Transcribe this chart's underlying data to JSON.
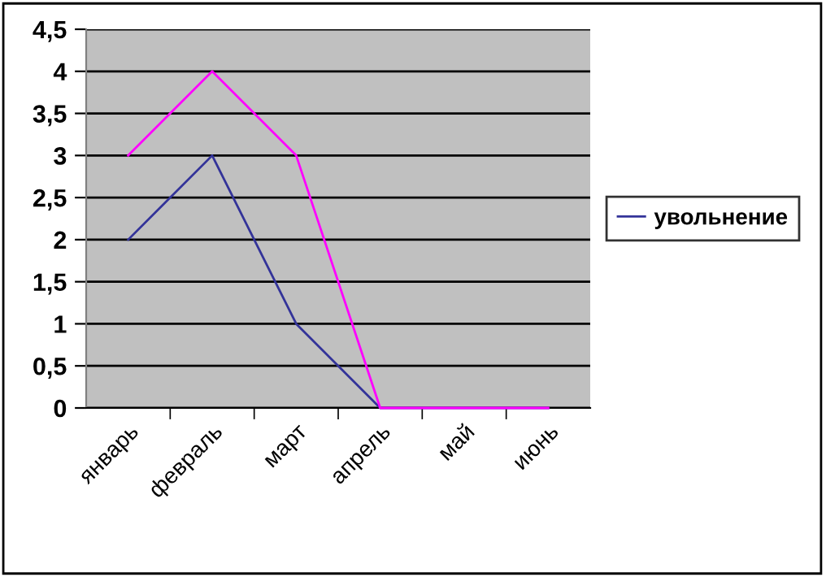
{
  "chart_data": {
    "type": "line",
    "categories": [
      "январь",
      "февраль",
      "март",
      "апрель",
      "май",
      "июнь"
    ],
    "series": [
      {
        "name": "увольнение",
        "color": "#333399",
        "values": [
          2,
          3,
          1,
          0,
          0,
          0
        ]
      },
      {
        "color": "#ff00ff",
        "values": [
          3,
          4,
          3,
          0,
          0,
          0
        ]
      }
    ],
    "ylim": [
      0,
      4.5
    ],
    "yticks": [
      {
        "value": 0,
        "label": "0"
      },
      {
        "value": 0.5,
        "label": "0,5"
      },
      {
        "value": 1,
        "label": "1"
      },
      {
        "value": 1.5,
        "label": "1,5"
      },
      {
        "value": 2,
        "label": "2"
      },
      {
        "value": 2.5,
        "label": "2,5"
      },
      {
        "value": 3,
        "label": "3"
      },
      {
        "value": 3.5,
        "label": "3,5"
      },
      {
        "value": 4,
        "label": "4"
      },
      {
        "value": 4.5,
        "label": "4,5"
      }
    ],
    "grid": "y",
    "legend": "right",
    "marker": "none",
    "line_style": "solid"
  }
}
